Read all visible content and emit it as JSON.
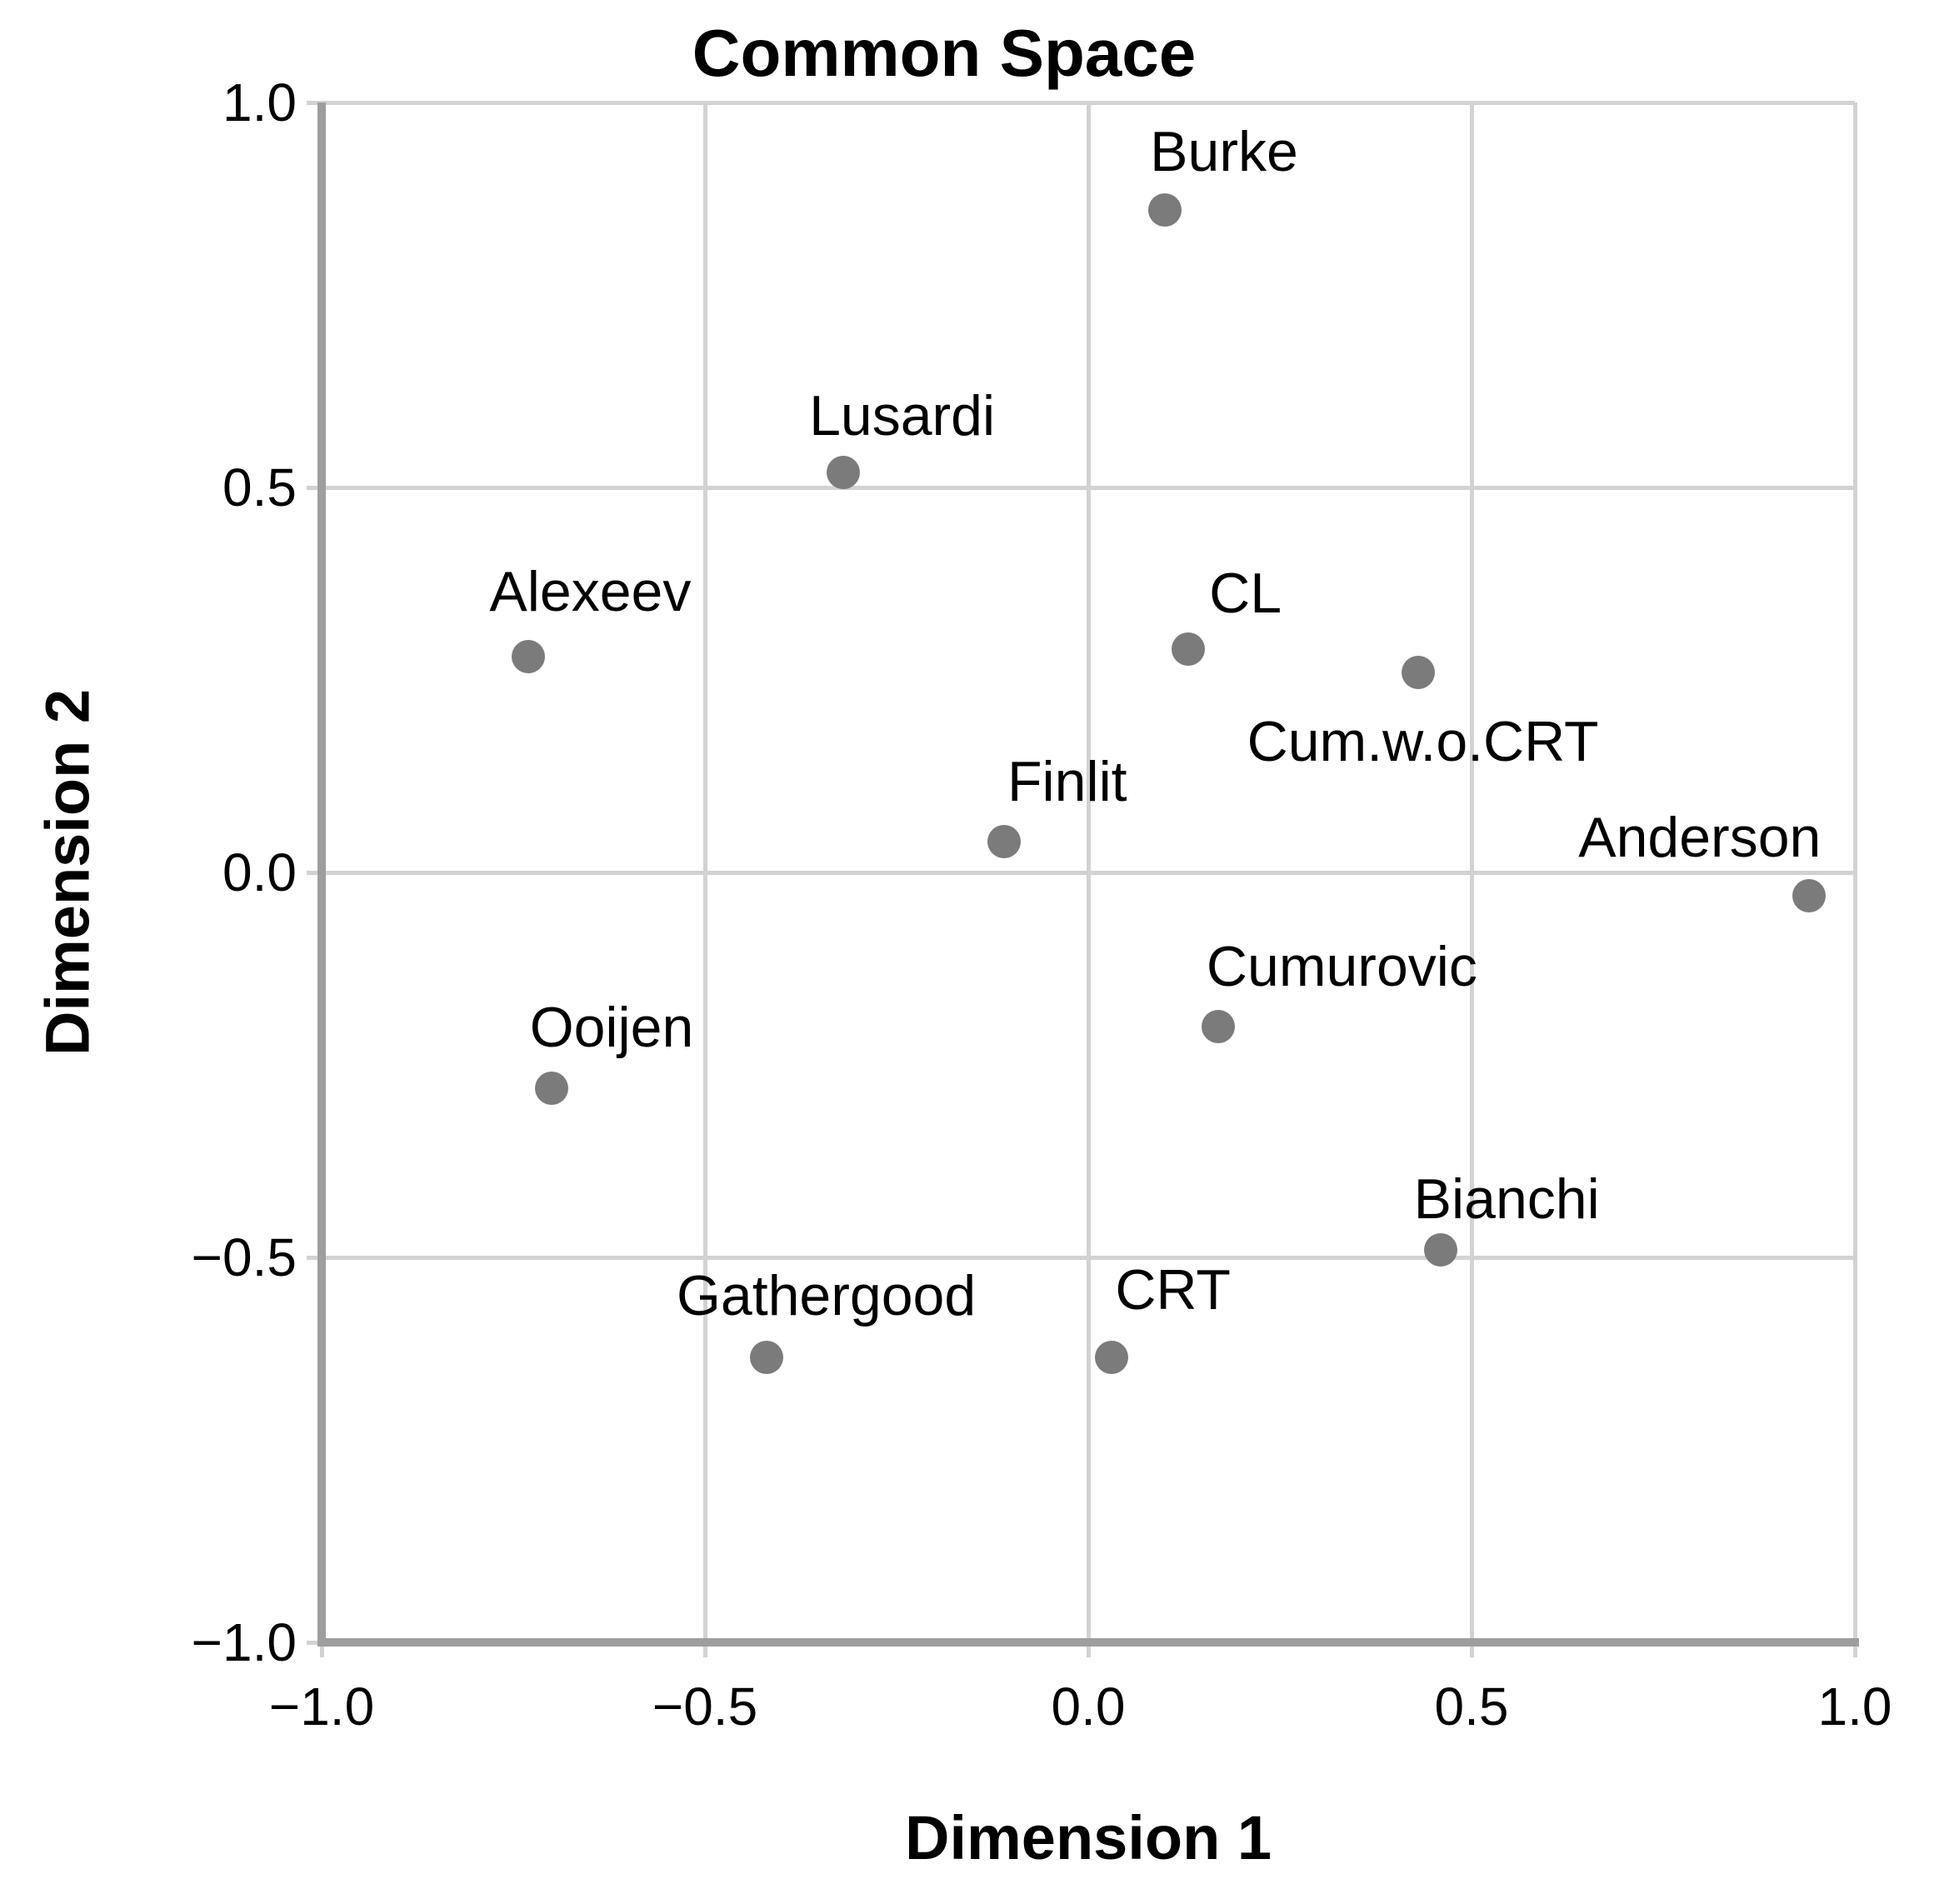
{
  "chart_data": {
    "type": "scatter",
    "title": "Common Space",
    "xlabel": "Dimension 1",
    "ylabel": "Dimension 2",
    "xlim": [
      -1.0,
      1.0
    ],
    "ylim": [
      -1.0,
      1.0
    ],
    "grid": {
      "show": true,
      "interval": 0.5
    },
    "legend": "none",
    "x_ticks": [
      {
        "value": -1.0,
        "label": "−1.0"
      },
      {
        "value": -0.5,
        "label": "−0.5"
      },
      {
        "value": 0.0,
        "label": "0.0"
      },
      {
        "value": 0.5,
        "label": "0.5"
      },
      {
        "value": 1.0,
        "label": "1.0"
      }
    ],
    "y_ticks": [
      {
        "value": -1.0,
        "label": "−1.0"
      },
      {
        "value": -0.5,
        "label": "−0.5"
      },
      {
        "value": 0.0,
        "label": "0.0"
      },
      {
        "value": 0.5,
        "label": "0.5"
      },
      {
        "value": 1.0,
        "label": "1.0"
      }
    ],
    "styles": {
      "point_color": "#7b7b7b",
      "grid_color": "#d2d2d2",
      "axis_color": "#9e9e9e",
      "text_color": "#000000"
    },
    "points": [
      {
        "label": "Burke",
        "x": 0.1,
        "y": 0.86,
        "label_offset": [
          71,
          -70
        ]
      },
      {
        "label": "Lusardi",
        "x": -0.32,
        "y": 0.52,
        "label_offset": [
          71,
          -68
        ]
      },
      {
        "label": "Alexeev",
        "x": -0.73,
        "y": 0.28,
        "label_offset": [
          74,
          -78
        ]
      },
      {
        "label": "CL",
        "x": 0.13,
        "y": 0.29,
        "label_offset": [
          69,
          -67
        ]
      },
      {
        "label": "Cum.w.o.CRT",
        "x": 0.43,
        "y": 0.26,
        "label_offset": [
          6,
          83
        ]
      },
      {
        "label": "Finlit",
        "x": -0.11,
        "y": 0.04,
        "label_offset": [
          76,
          -72
        ]
      },
      {
        "label": "Anderson",
        "x": 0.94,
        "y": -0.03,
        "label_offset": [
          -131,
          -70
        ]
      },
      {
        "label": "Cumurovic",
        "x": 0.17,
        "y": -0.2,
        "label_offset": [
          148,
          -72
        ]
      },
      {
        "label": "Ooijen",
        "x": -0.7,
        "y": -0.28,
        "label_offset": [
          72,
          -73
        ]
      },
      {
        "label": "Bianchi",
        "x": 0.46,
        "y": -0.49,
        "label_offset": [
          79,
          -61
        ]
      },
      {
        "label": "Gathergood",
        "x": -0.42,
        "y": -0.63,
        "label_offset": [
          72,
          -74
        ]
      },
      {
        "label": "CRT",
        "x": 0.03,
        "y": -0.63,
        "label_offset": [
          74,
          -81
        ]
      }
    ]
  }
}
